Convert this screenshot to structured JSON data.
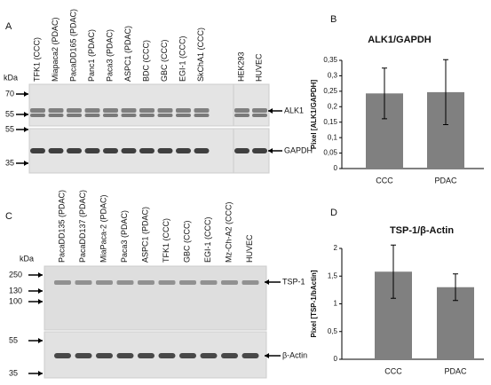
{
  "panels": [
    "A",
    "B",
    "C",
    "D"
  ],
  "blot_a": {
    "kda": "kDa",
    "markers": [
      "70",
      "55",
      "55",
      "35"
    ],
    "lanes": [
      "TFK1 (CCC)",
      "Miapaca2 (PDAC)",
      "PacaDD165 (PDAC)",
      "Panc1 (PDAC)",
      "Paca3 (PDAC)",
      "ASPC1 (PDAC)",
      "BDC (CCC)",
      "GBC (CCC)",
      "EGI-1 (CCC)",
      "SkChA1 (CCC)",
      "HEK293",
      "HUVEC"
    ],
    "proteins": [
      "ALK1",
      "GAPDH"
    ]
  },
  "blot_c": {
    "kda": "kDa",
    "markers": [
      "250",
      "130",
      "100",
      "55",
      "35"
    ],
    "lanes": [
      "PacaDD135 (PDAC)",
      "PacaDD137 (PDAC)",
      "MiaPaca-2 (PDAC)",
      "Paca3 (PDAC)",
      "ASPC1 (PDAC)",
      "TFK1 (CCC)",
      "GBC (CCC)",
      "EGI-1 (CCC)",
      "Mz-Ch-A2 (CCC)",
      "HUVEC"
    ],
    "proteins": [
      "TSP-1",
      "β-Actin"
    ]
  },
  "chart_data": [
    {
      "type": "bar",
      "title": "ALK1/GAPDH",
      "y_label": "Pixel [ALK1/GAPDH]",
      "categories": [
        "CCC",
        "PDAC"
      ],
      "values": [
        0.243,
        0.247
      ],
      "errors": [
        0.082,
        0.105
      ],
      "color": "#808080",
      "ylim": [
        0,
        0.35
      ],
      "yticks": [
        0,
        {
          "value": 0.05,
          "label": "0,05"
        },
        {
          "value": 0.1,
          "label": "0,1"
        },
        {
          "value": 0.15,
          "label": "0,15"
        },
        {
          "value": 0.2,
          "label": "0,2"
        },
        {
          "value": 0.25,
          "label": "0,25"
        },
        {
          "value": 0.3,
          "label": "0,3"
        },
        {
          "value": 0.35,
          "label": "0,35"
        }
      ]
    },
    {
      "type": "bar",
      "title": "TSP-1/β-Actin",
      "y_label": "Pixel [TSP-1/bActin]",
      "categories": [
        "CCC",
        "PDAC"
      ],
      "values": [
        1.58,
        1.3
      ],
      "errors": [
        0.48,
        0.24
      ],
      "color": "#808080",
      "ylim": [
        0,
        2
      ],
      "yticks": [
        0,
        {
          "value": 0.5,
          "label": "0,5"
        },
        1,
        {
          "value": 1.5,
          "label": "1,5"
        },
        2
      ]
    }
  ]
}
